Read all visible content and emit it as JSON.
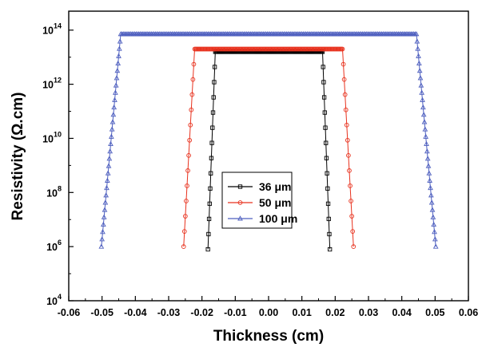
{
  "chart_data": {
    "type": "line",
    "xlabel": "Thickness (cm)",
    "ylabel": "Resistivity (Ω.cm)",
    "xlim": [
      -0.06,
      0.06
    ],
    "ylim_exp": [
      4,
      14.7
    ],
    "yscale": "log",
    "x_ticks": [
      "-0.06",
      "-0.05",
      "-0.04",
      "-0.03",
      "-0.02",
      "-0.01",
      "0.00",
      "0.01",
      "0.02",
      "0.03",
      "0.04",
      "0.05",
      "0.06"
    ],
    "y_ticks": [
      {
        "base": "10",
        "exp": "4"
      },
      {
        "base": "10",
        "exp": "6"
      },
      {
        "base": "10",
        "exp": "8"
      },
      {
        "base": "10",
        "exp": "10"
      },
      {
        "base": "10",
        "exp": "12"
      },
      {
        "base": "10",
        "exp": "14"
      }
    ],
    "grid": false,
    "legend_position": "center",
    "series": [
      {
        "name": "36 μm",
        "color": "#000000",
        "marker": "square",
        "edge_start": -0.0182,
        "edge_width": 0.0022,
        "edge_points": 14,
        "plateau_end": 0.0162,
        "plateau_points": 130,
        "log_min": 5.9,
        "log_max": 13.2
      },
      {
        "name": "50 μm",
        "color": "#e8321e",
        "marker": "circle",
        "edge_start": -0.0255,
        "edge_width": 0.0033,
        "edge_points": 14,
        "plateau_end": 0.0222,
        "plateau_points": 160,
        "log_min": 6.0,
        "log_max": 13.3
      },
      {
        "name": "100 μm",
        "color": "#4e5fbf",
        "marker": "triangle",
        "edge_start": -0.0502,
        "edge_width": 0.0058,
        "edge_points": 30,
        "plateau_end": 0.0444,
        "plateau_points": 230,
        "log_min": 6.0,
        "log_max": 13.85
      }
    ]
  }
}
